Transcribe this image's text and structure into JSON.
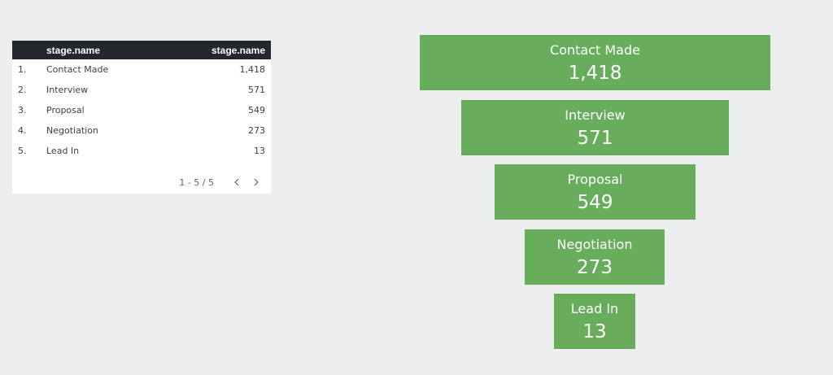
{
  "table": {
    "header": {
      "dimension_label": "stage.name",
      "metric_label": "stage.name"
    },
    "rows": [
      {
        "index": "1.",
        "name": "Contact Made",
        "value": "1,418"
      },
      {
        "index": "2.",
        "name": "Interview",
        "value": "571"
      },
      {
        "index": "3.",
        "name": "Proposal",
        "value": "549"
      },
      {
        "index": "4.",
        "name": "Negotiation",
        "value": "273"
      },
      {
        "index": "5.",
        "name": "Lead In",
        "value": "13"
      }
    ],
    "pagination": {
      "text": "1 - 5 / 5",
      "prev_icon": "chevron-left-icon",
      "next_icon": "chevron-right-icon"
    }
  },
  "funnel": {
    "color": "#67ad5b",
    "text_color": "#ffffff",
    "stages": [
      {
        "label": "Contact Made",
        "value": 1418,
        "display_value": "1,418"
      },
      {
        "label": "Interview",
        "value": 571,
        "display_value": "571"
      },
      {
        "label": "Proposal",
        "value": 549,
        "display_value": "549"
      },
      {
        "label": "Negotiation",
        "value": 273,
        "display_value": "273"
      },
      {
        "label": "Lead In",
        "value": 13,
        "display_value": "13"
      }
    ]
  },
  "colors": {
    "background": "#edeef0",
    "table_header_bg": "#23272e",
    "funnel_bar": "#67ad5b"
  }
}
